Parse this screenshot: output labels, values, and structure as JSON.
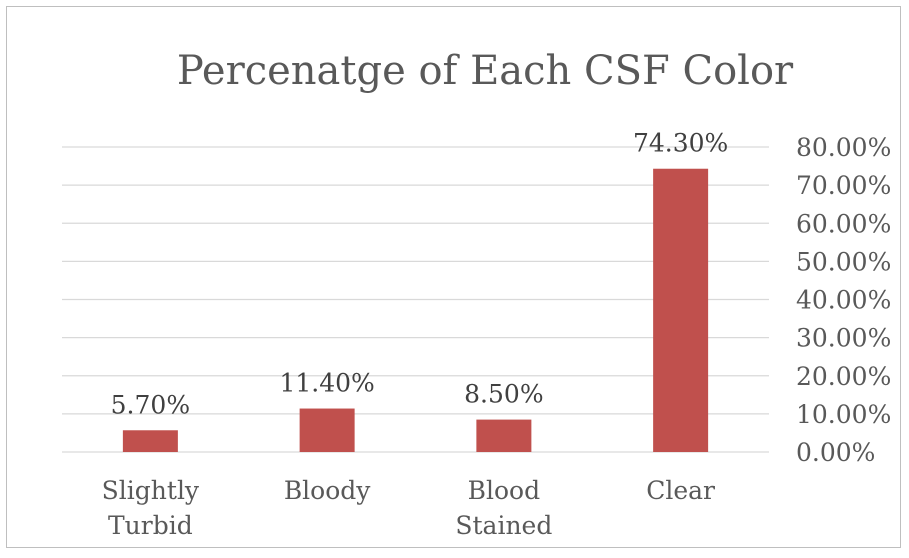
{
  "chart_data": {
    "type": "bar",
    "title": "Percenatge of Each CSF Color",
    "categories": [
      [
        "Slightly",
        "Turbid"
      ],
      [
        "Bloody"
      ],
      [
        "Blood",
        "Stained"
      ],
      [
        "Clear"
      ]
    ],
    "values": [
      5.7,
      11.4,
      8.5,
      74.3
    ],
    "data_labels": [
      "5.70%",
      "11.40%",
      "8.50%",
      "74.30%"
    ],
    "y_ticks": [
      "0.00%",
      "10.00%",
      "20.00%",
      "30.00%",
      "40.00%",
      "50.00%",
      "60.00%",
      "70.00%",
      "80.00%"
    ],
    "ylim": [
      0,
      80
    ],
    "y_axis_position": "right",
    "grid": true,
    "legend": "none",
    "bar_color": "#c0504d",
    "grid_color": "#d9d9d9",
    "text_color": "#595959"
  }
}
